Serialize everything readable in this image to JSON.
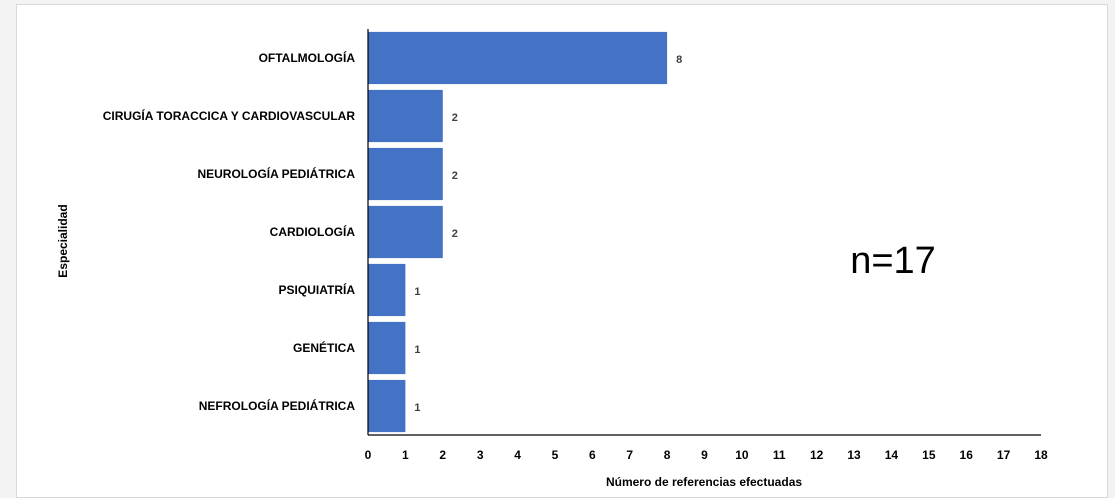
{
  "chart_data": {
    "type": "bar",
    "orientation": "horizontal",
    "categories": [
      "OFTALMOLOGÍA",
      "CIRUGÍA TORACCICA Y CARDIOVASCULAR",
      "NEUROLOGÍA PEDIÁTRICA",
      "CARDIOLOGÍA",
      "PSIQUIATRÍA",
      "GENÉTICA",
      "NEFROLOGÍA PEDIÁTRICA"
    ],
    "values": [
      8,
      2,
      2,
      2,
      1,
      1,
      1
    ],
    "data_labels": [
      "8",
      "2",
      "2",
      "2",
      "1",
      "1",
      "1"
    ],
    "title": "",
    "xlabel": "Número de referencias efectuadas",
    "ylabel": "Especialidad",
    "xlim": [
      0,
      18
    ],
    "x_ticks": [
      "0",
      "1",
      "2",
      "3",
      "4",
      "5",
      "6",
      "7",
      "8",
      "9",
      "10",
      "11",
      "12",
      "13",
      "14",
      "15",
      "16",
      "17",
      "18"
    ],
    "annotation": "n=17",
    "grid": false,
    "legend": "none",
    "bar_color": "#4472c4"
  }
}
